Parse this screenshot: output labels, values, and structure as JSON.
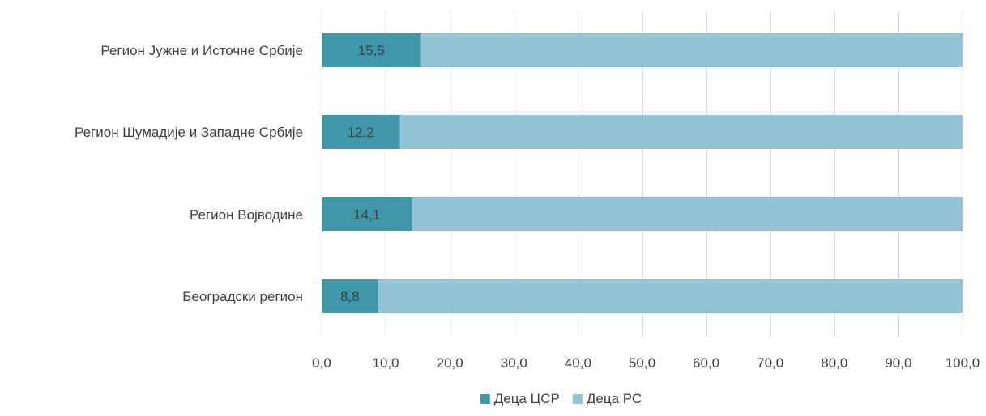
{
  "chart_data": {
    "type": "bar",
    "orientation": "horizontal",
    "stacked": true,
    "categories": [
      "Регион Јужне и Источне Србије",
      "Регион Шумадије и Западне Србије",
      "Регион Војводине",
      "Београдски регион"
    ],
    "series": [
      {
        "name": "Деца ЦСР",
        "values": [
          15.5,
          12.2,
          14.1,
          8.8
        ],
        "color": "#4097aa",
        "value_labels": [
          "15,5",
          "12,2",
          "14,1",
          "8,8"
        ]
      },
      {
        "name": "Деца РС",
        "values": [
          84.5,
          87.8,
          85.9,
          91.2
        ],
        "color": "#93c3d4"
      }
    ],
    "xlim": [
      0,
      100
    ],
    "x_ticks": [
      "0,0",
      "10,0",
      "20,0",
      "30,0",
      "40,0",
      "50,0",
      "60,0",
      "70,0",
      "80,0",
      "90,0",
      "100,0"
    ],
    "grid": "vertical",
    "legend_position": "bottom",
    "title": "",
    "xlabel": "",
    "ylabel": ""
  }
}
